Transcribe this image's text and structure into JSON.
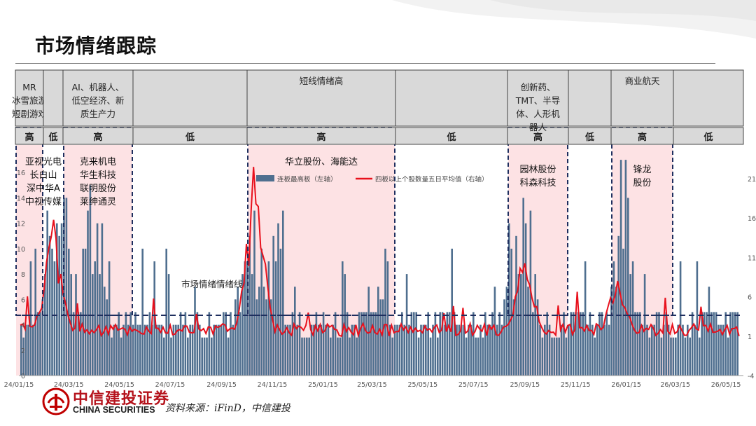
{
  "page": {
    "title": "市场情绪跟踪",
    "source": "资料来源：iFinD，中信建投",
    "logo_cn": "中信建投证券",
    "logo_en": "CHINA SECURITIES",
    "brand_color": "#c00000"
  },
  "chart_data": {
    "type": "bar+line",
    "colors": {
      "bar": "#4f6f8f",
      "line": "#e8101c",
      "pink": "#fde2e4",
      "dash": "#1f2f5f"
    },
    "legend": [
      {
        "key": "bar",
        "label": "连板最高板（左轴）"
      },
      {
        "key": "line",
        "label": "四板以上个股数量五日平均值（右轴）"
      }
    ],
    "legend_position": "top-center",
    "y_left": {
      "min": 0,
      "max": 18,
      "ticks": [
        0,
        2,
        4,
        6,
        8,
        10,
        12,
        14,
        16
      ]
    },
    "y_right": {
      "min": -4,
      "max": 25,
      "ticks": [
        -4,
        1,
        6,
        11,
        16,
        21
      ]
    },
    "x_ticks": [
      "24/01/15",
      "24/03/15",
      "24/05/15",
      "24/07/15",
      "24/09/15",
      "24/11/15",
      "25/01/15",
      "25/03/15",
      "25/05/15",
      "25/07/15",
      "25/09/15",
      "25/11/15",
      "26/01/15",
      "26/03/15",
      "26/05/15"
    ],
    "annotation": "市场情绪情绪线",
    "periods": [
      {
        "theme": "MR\n冰雪旅游\n短剧游戏",
        "level": "高",
        "stocks": "亚视光电\n长白山\n深中华A\n中视传媒"
      },
      {
        "theme": "",
        "level": "低",
        "stocks": ""
      },
      {
        "theme": "AI、机器人、\n低空经济、新\n质生产力",
        "level": "高",
        "stocks": "克来机电\n华生科技\n联明股份\n莱绅通灵"
      },
      {
        "theme": "",
        "level": "低",
        "stocks": ""
      },
      {
        "theme": "短线情绪高",
        "level": "高",
        "stocks": "华立股份、海能达"
      },
      {
        "theme": "",
        "level": "低",
        "stocks": ""
      },
      {
        "theme": "创新药、\nTMT、半导\n体、人形机\n器人",
        "level": "高",
        "stocks": "园林股份\n科森科技"
      },
      {
        "theme": "",
        "level": "低",
        "stocks": ""
      },
      {
        "theme": "商业航天",
        "level": "高",
        "stocks": "锋龙\n股份"
      },
      {
        "theme": "",
        "level": "低",
        "stocks": ""
      }
    ],
    "series": [
      {
        "name": "连板最高板（左轴）",
        "key": "bar",
        "peaks": [
          {
            "x": "24/02/20",
            "y": 11
          },
          {
            "x": "24/03/05",
            "y": 16
          },
          {
            "x": "24/04/10",
            "y": 15
          },
          {
            "x": "24/10/20",
            "y": 14
          },
          {
            "x": "24/11/15",
            "y": 13
          },
          {
            "x": "25/03/20",
            "y": 11
          },
          {
            "x": "25/09/10",
            "y": 15
          },
          {
            "x": "26/01/10",
            "y": 16
          }
        ]
      },
      {
        "name": "四板以上个股数量五日平均值（右轴）",
        "key": "line",
        "peaks": [
          {
            "x": "24/02/25",
            "y": 15
          },
          {
            "x": "24/10/25",
            "y": 21
          },
          {
            "x": "25/09/15",
            "y": 12
          },
          {
            "x": "26/01/05",
            "y": 9
          }
        ]
      }
    ]
  }
}
